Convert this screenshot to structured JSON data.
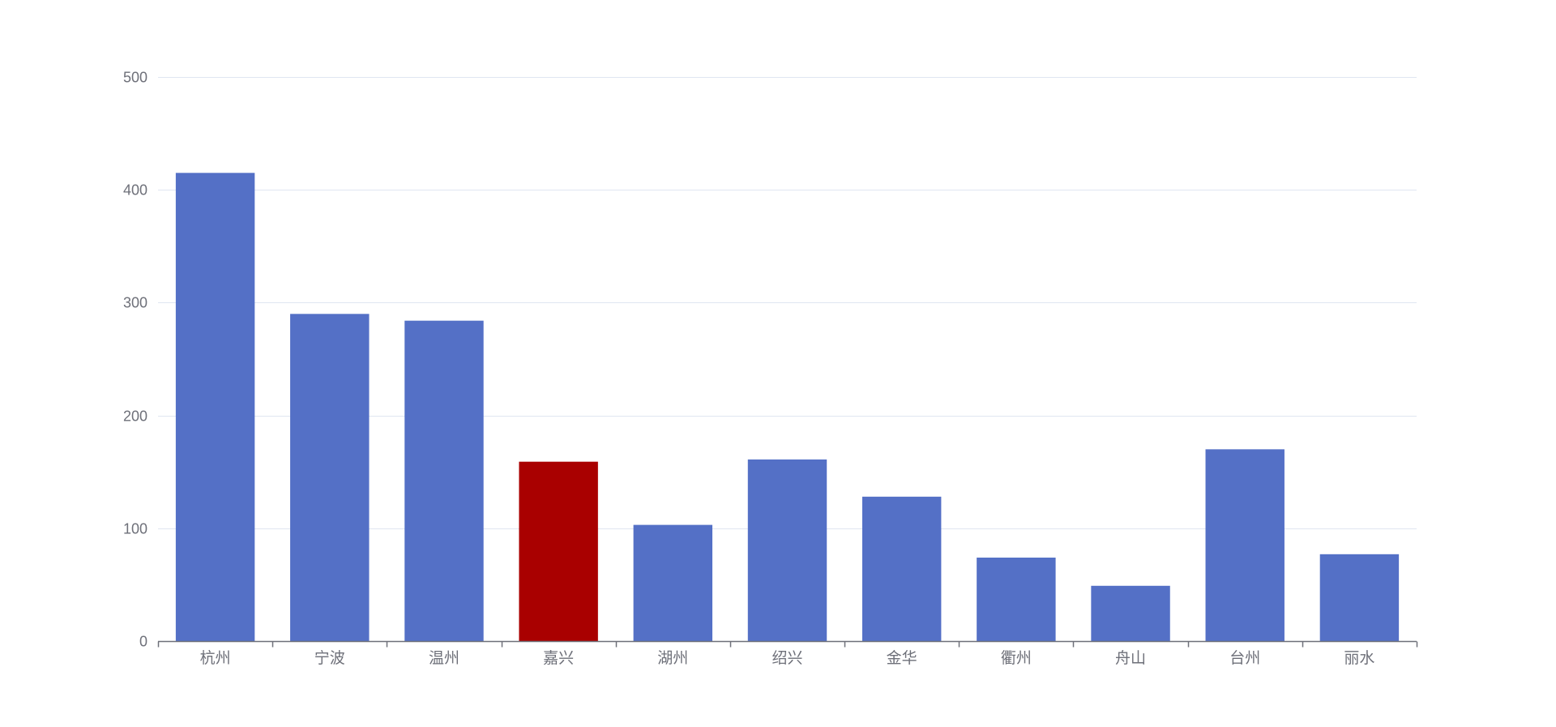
{
  "chart_data": {
    "type": "bar",
    "title": "",
    "xlabel": "",
    "ylabel": "",
    "categories": [
      "杭州",
      "宁波",
      "温州",
      "嘉兴",
      "湖州",
      "绍兴",
      "金华",
      "衢州",
      "舟山",
      "台州",
      "丽水"
    ],
    "values": [
      415,
      290,
      284,
      159,
      103,
      161,
      128,
      74,
      49,
      170,
      77
    ],
    "highlight_index": 3,
    "ylim": [
      0,
      500
    ],
    "yticks": [
      0,
      100,
      200,
      300,
      400,
      500
    ],
    "grid": true,
    "legend": "none"
  },
  "colors": {
    "bar": "#5470c6",
    "highlight": "#a90000",
    "grid": "#e0e6f1",
    "axis": "#6e7079",
    "label": "#6e7079"
  }
}
